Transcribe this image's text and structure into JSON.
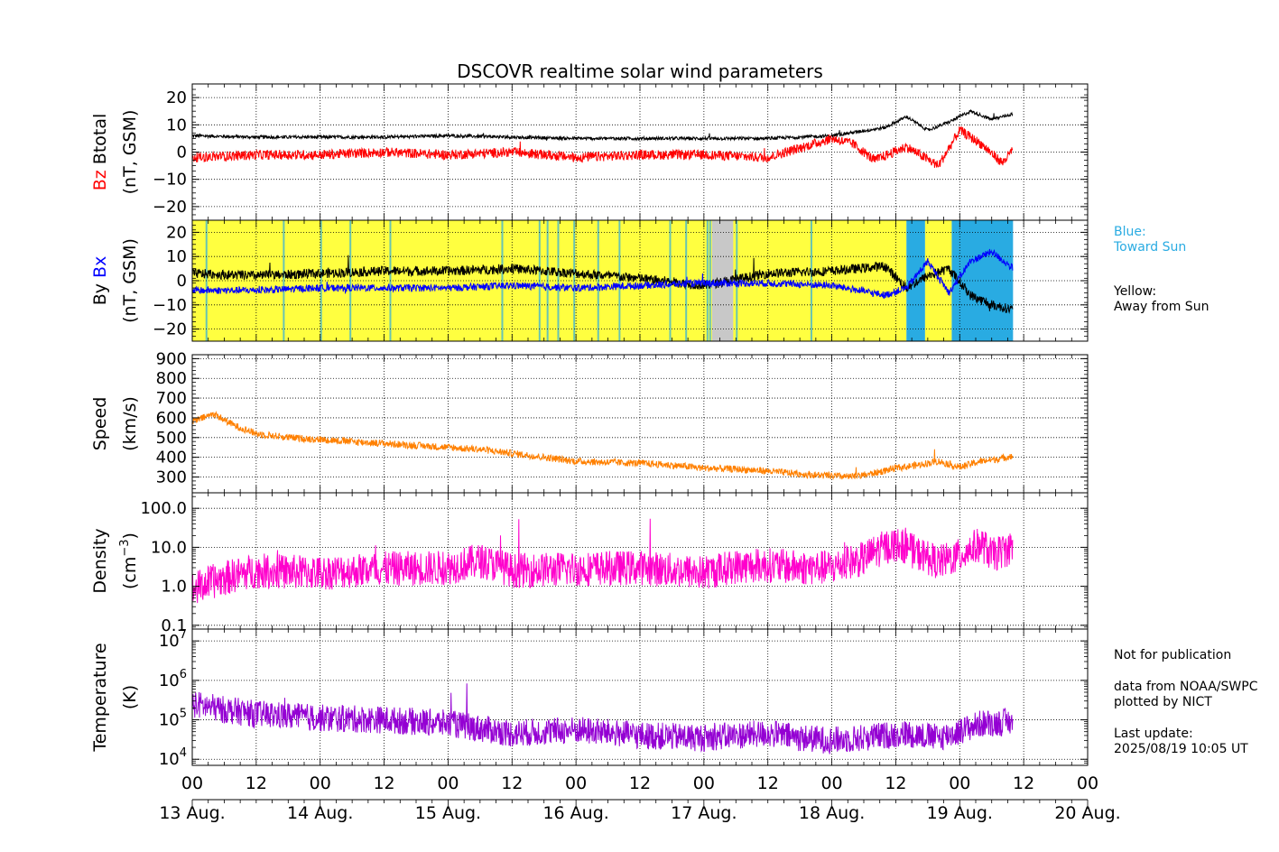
{
  "title": "DSCOVR realtime solar wind parameters",
  "colors": {
    "bz": "#ff0000",
    "btotal": "#000000",
    "bx": "#0000ff",
    "by": "#000000",
    "speed": "#ff8000",
    "density": "#ff00cc",
    "temperature": "#9400d3",
    "away": "#ffff40",
    "toward": "#29abe2",
    "gap": "#c8c8c8",
    "legend_blue": "#29abe2"
  },
  "legend": {
    "blue_line1": "Blue:",
    "blue_line2": "Toward Sun",
    "yellow_line1": "Yellow:",
    "yellow_line2": "Away from Sun"
  },
  "footer": {
    "not_for_publication": "Not for publication",
    "data_from": "data from NOAA/SWPC",
    "plotted_by": "plotted by NICT",
    "last_update_label": "Last update:",
    "last_update_value": "2025/08/19 10:05 UT"
  },
  "x_axis": {
    "range_hours": [
      0,
      168
    ],
    "tick_hours": [
      0,
      12,
      24,
      36,
      48,
      60,
      72,
      84,
      96,
      108,
      120,
      132,
      144,
      156,
      168
    ],
    "tick_labels": [
      "00",
      "12",
      "00",
      "12",
      "00",
      "12",
      "00",
      "12",
      "00",
      "12",
      "00",
      "12",
      "00",
      "12",
      "00"
    ],
    "date_hours": [
      0,
      24,
      48,
      72,
      96,
      120,
      144,
      168
    ],
    "date_labels": [
      "13 Aug.",
      "14 Aug.",
      "15 Aug.",
      "16 Aug.",
      "17 Aug.",
      "18 Aug.",
      "19 Aug.",
      "20 Aug."
    ],
    "data_end_hour": 154
  },
  "chart_data": [
    {
      "type": "line",
      "panel": "magnetic",
      "ylabel_parts": [
        "Bz",
        "Btotal",
        "(nT, GSM)"
      ],
      "ylim": [
        -25,
        25
      ],
      "yticks": [
        -20,
        -10,
        0,
        10,
        20
      ],
      "ytick_labels": [
        "−20",
        "−10",
        "0",
        "10",
        "20"
      ],
      "grid": true,
      "series": [
        {
          "name": "Btotal",
          "x": [
            0,
            12,
            24,
            36,
            48,
            60,
            72,
            84,
            96,
            108,
            120,
            130,
            134,
            138,
            142,
            146,
            150,
            154
          ],
          "y": [
            6,
            5.5,
            5.5,
            5.5,
            6,
            5.5,
            5,
            5,
            5,
            5,
            6,
            9,
            13,
            8,
            11,
            15,
            12,
            14
          ]
        },
        {
          "name": "Bz",
          "x": [
            0,
            12,
            24,
            36,
            48,
            60,
            72,
            84,
            96,
            108,
            120,
            124,
            128,
            134,
            140,
            144,
            148,
            152,
            154
          ],
          "y": [
            -2,
            -1,
            -1,
            0,
            -1,
            0,
            -2,
            -1,
            -1,
            -2,
            5,
            3,
            -3,
            2,
            -5,
            8,
            3,
            -4,
            1
          ]
        }
      ]
    },
    {
      "type": "line",
      "panel": "bxby",
      "ylabel_parts": [
        "By",
        "Bx",
        "(nT, GSM)"
      ],
      "ylim": [
        -25,
        25
      ],
      "yticks": [
        -20,
        -10,
        0,
        10,
        20
      ],
      "ytick_labels": [
        "−20",
        "−10",
        "0",
        "10",
        "20"
      ],
      "grid": true,
      "sector_background": [
        {
          "sector": "away",
          "from": 0,
          "to": 134
        },
        {
          "sector": "toward",
          "from": 134,
          "to": 137.5
        },
        {
          "sector": "away",
          "from": 137.5,
          "to": 142.5
        },
        {
          "sector": "toward",
          "from": 142.5,
          "to": 154
        },
        {
          "sector": "gap",
          "from": 97.5,
          "to": 101.5
        }
      ],
      "series": [
        {
          "name": "By",
          "x": [
            0,
            12,
            24,
            36,
            48,
            60,
            72,
            84,
            96,
            108,
            120,
            130,
            134,
            138,
            142,
            146,
            150,
            154
          ],
          "y": [
            3,
            2,
            3,
            4,
            4,
            5,
            3,
            1,
            -2,
            3,
            4,
            6,
            -3,
            2,
            5,
            -6,
            -10,
            -12
          ]
        },
        {
          "name": "Bx",
          "x": [
            0,
            12,
            24,
            36,
            48,
            60,
            72,
            84,
            96,
            108,
            120,
            130,
            134,
            138,
            142,
            146,
            150,
            154
          ],
          "y": [
            -4,
            -4,
            -3,
            -3,
            -3,
            -2,
            -3,
            -2,
            -1,
            -1,
            -2,
            -6,
            -3,
            8,
            -5,
            8,
            12,
            5
          ]
        }
      ]
    },
    {
      "type": "line",
      "panel": "speed",
      "ylabel_parts": [
        "Speed",
        "(km/s)"
      ],
      "ylim": [
        220,
        920
      ],
      "yticks": [
        300,
        400,
        500,
        600,
        700,
        800,
        900
      ],
      "ytick_labels": [
        "300",
        "400",
        "500",
        "600",
        "700",
        "800",
        "900"
      ],
      "grid": true,
      "series": [
        {
          "name": "Speed",
          "x": [
            0,
            4,
            8,
            12,
            18,
            24,
            30,
            36,
            42,
            48,
            54,
            60,
            66,
            72,
            78,
            84,
            90,
            96,
            102,
            108,
            114,
            120,
            124,
            128,
            132,
            136,
            140,
            144,
            148,
            152,
            154
          ],
          "y": [
            580,
            620,
            560,
            520,
            500,
            490,
            480,
            470,
            460,
            450,
            440,
            420,
            400,
            380,
            375,
            370,
            360,
            345,
            340,
            330,
            315,
            305,
            300,
            320,
            345,
            360,
            380,
            350,
            380,
            395,
            410
          ]
        }
      ]
    },
    {
      "type": "line",
      "panel": "density",
      "ylabel_parts": [
        "Density",
        "(cm",
        "−3",
        ")"
      ],
      "yscale": "log",
      "ylim": [
        0.08,
        250
      ],
      "yticks": [
        0.1,
        1.0,
        10.0,
        100.0
      ],
      "ytick_labels": [
        "0.1",
        "1.0",
        "10.0",
        "100.0"
      ],
      "grid": true,
      "series": [
        {
          "name": "Density",
          "x": [
            0,
            6,
            12,
            24,
            36,
            48,
            54,
            60,
            72,
            84,
            96,
            102,
            108,
            114,
            120,
            126,
            130,
            132,
            136,
            140,
            144,
            148,
            150,
            154
          ],
          "y": [
            0.8,
            1.6,
            2.5,
            2.2,
            2.8,
            3.0,
            4.5,
            2.5,
            2.8,
            3.0,
            2.2,
            3.2,
            3.5,
            3.0,
            3.0,
            5.0,
            10.0,
            12.0,
            7.0,
            4.0,
            6.0,
            12.0,
            6.0,
            10.0
          ]
        }
      ]
    },
    {
      "type": "line",
      "panel": "temperature",
      "ylabel_parts": [
        "Temperature",
        "(K)"
      ],
      "yscale": "log",
      "ylim": [
        7000,
        20000000
      ],
      "yticks": [
        10000,
        100000,
        1000000,
        10000000
      ],
      "ytick_labels": [
        "10",
        "10",
        "10",
        "10"
      ],
      "ytick_exponents": [
        "4",
        "5",
        "6",
        "7"
      ],
      "grid": true,
      "series": [
        {
          "name": "Temperature",
          "x": [
            0,
            6,
            12,
            24,
            36,
            48,
            54,
            60,
            72,
            84,
            96,
            102,
            108,
            114,
            120,
            126,
            130,
            134,
            140,
            144,
            148,
            154
          ],
          "y": [
            250000,
            180000,
            140000,
            110000,
            100000,
            80000,
            60000,
            45000,
            55000,
            40000,
            35000,
            40000,
            45000,
            35000,
            30000,
            35000,
            40000,
            45000,
            35000,
            50000,
            80000,
            90000
          ]
        }
      ]
    }
  ]
}
